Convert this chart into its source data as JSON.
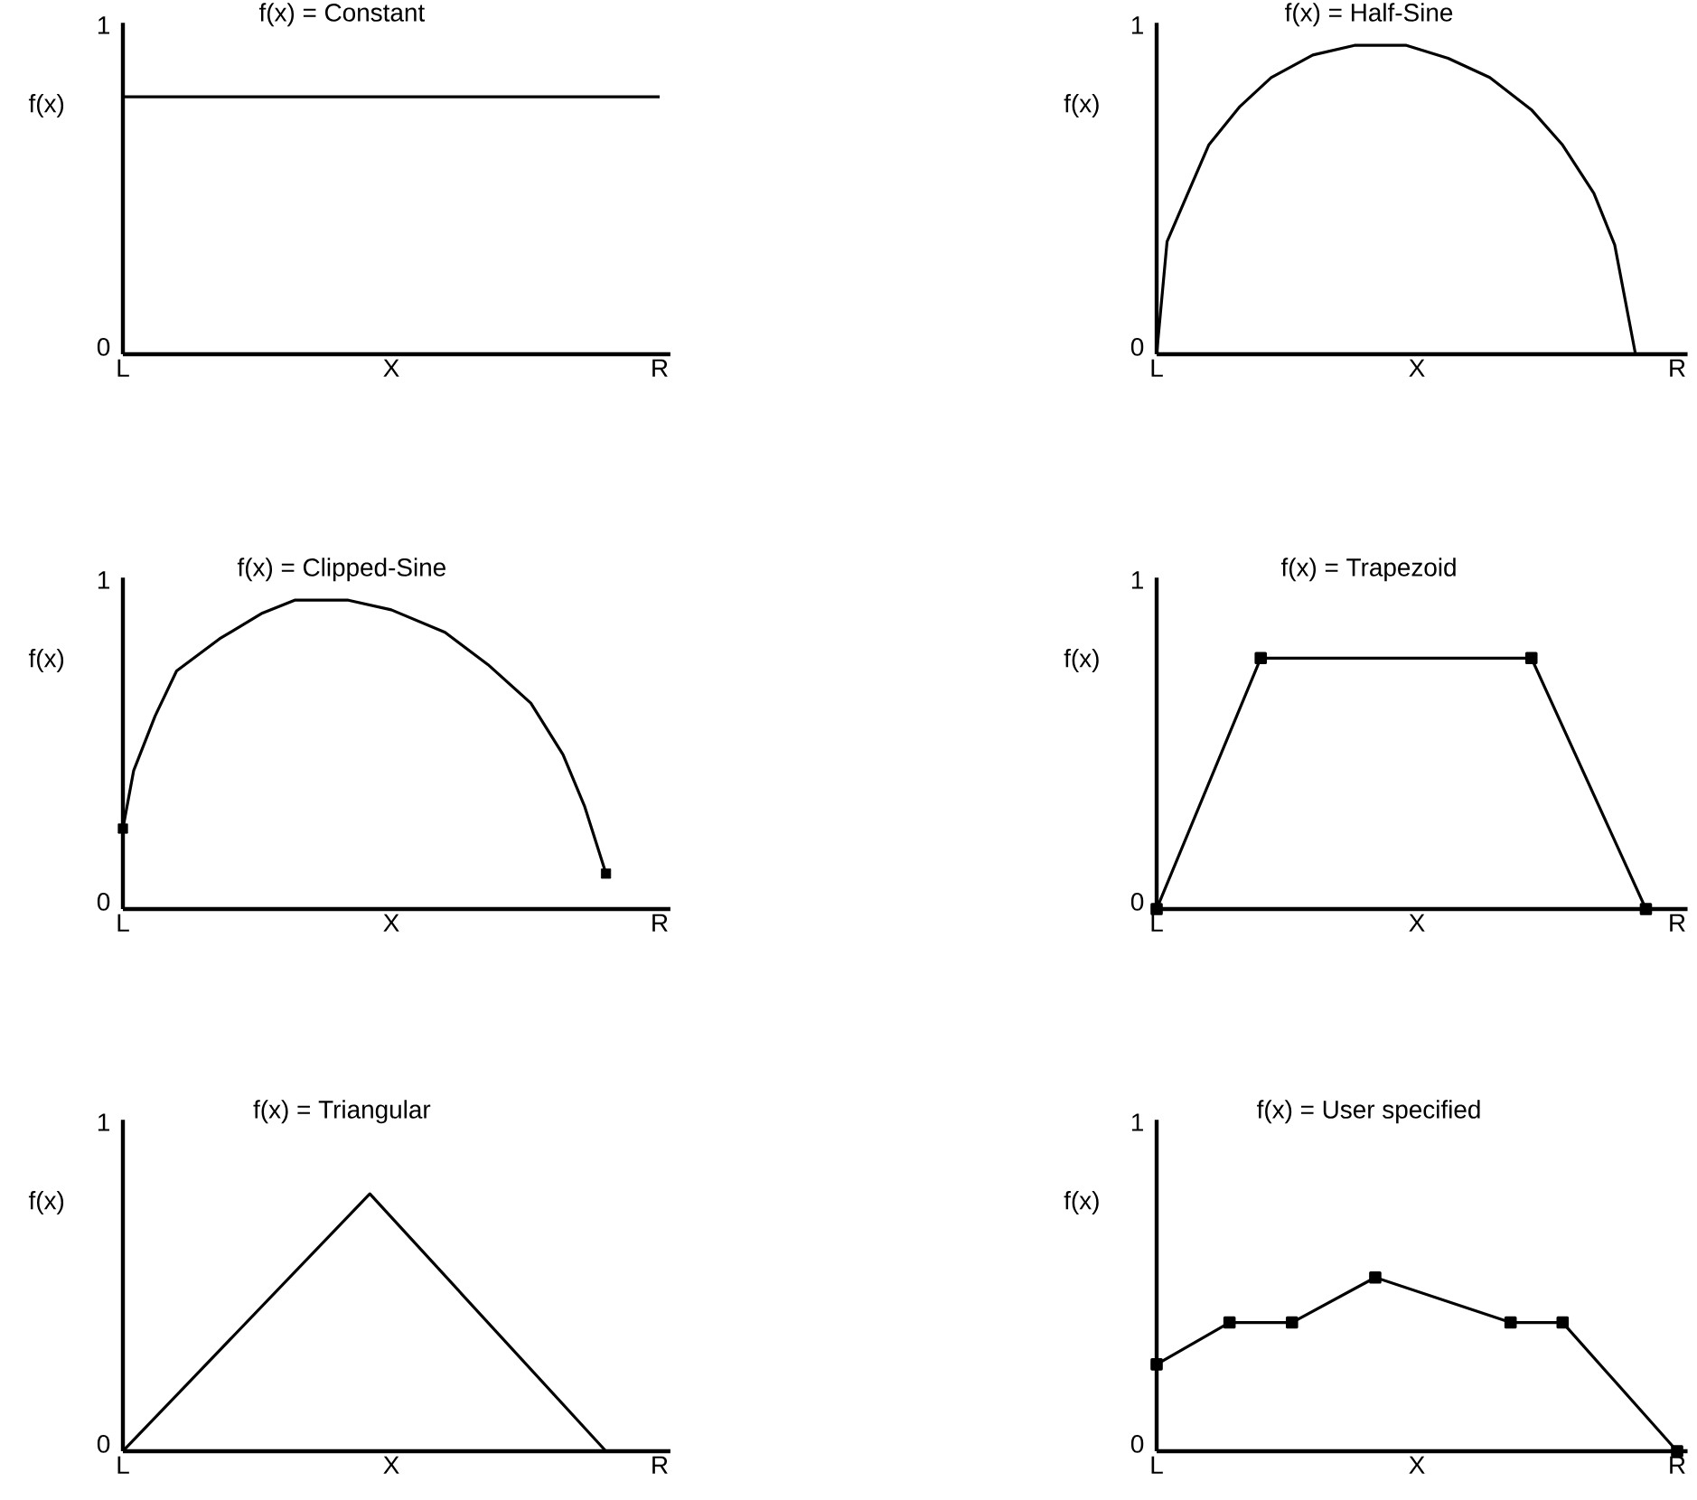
{
  "chart_data": [
    {
      "type": "line",
      "title": "f(x) = Constant",
      "ylabel": "f(x)",
      "ylim": [
        0,
        1.03
      ],
      "yticks": [
        0,
        1
      ],
      "categories": [
        "L",
        null,
        null,
        null,
        null,
        null,
        null,
        null,
        null,
        null,
        null,
        null,
        null,
        null,
        null,
        null,
        null,
        null,
        null,
        null,
        null,
        null,
        null,
        null,
        null,
        "X",
        null,
        null,
        null,
        null,
        null,
        null,
        null,
        null,
        null,
        null,
        null,
        null,
        null,
        null,
        null,
        null,
        null,
        null,
        null,
        null,
        null,
        null,
        null,
        null,
        "R"
      ],
      "series": [
        {
          "color": "#000000",
          "values": [
            0.8,
            null,
            null,
            null,
            null,
            null,
            null,
            null,
            null,
            null,
            null,
            null,
            null,
            null,
            null,
            null,
            null,
            null,
            null,
            null,
            null,
            null,
            null,
            null,
            null,
            null,
            null,
            null,
            null,
            null,
            null,
            null,
            null,
            null,
            null,
            null,
            null,
            null,
            null,
            null,
            null,
            null,
            null,
            null,
            null,
            null,
            null,
            null,
            null,
            null,
            0.8
          ]
        }
      ]
    },
    {
      "type": "line",
      "title": "f(x) = Half-Sine",
      "ylabel": "f(x)",
      "ylim": [
        0,
        1.03
      ],
      "yticks": [
        0,
        1
      ],
      "categories": [
        "L",
        null,
        null,
        null,
        null,
        null,
        null,
        null,
        null,
        null,
        null,
        null,
        null,
        null,
        null,
        null,
        null,
        null,
        null,
        null,
        null,
        null,
        null,
        null,
        null,
        "X",
        null,
        null,
        null,
        null,
        null,
        null,
        null,
        null,
        null,
        null,
        null,
        null,
        null,
        null,
        null,
        null,
        null,
        null,
        null,
        null,
        null,
        null,
        null,
        null,
        "R"
      ],
      "series": [
        {
          "color": "#000000",
          "values": [
            0,
            0.35,
            null,
            0.5,
            null,
            0.65,
            null,
            null,
            0.77,
            null,
            null,
            0.86,
            null,
            null,
            null,
            0.93,
            null,
            null,
            null,
            0.96,
            null,
            null,
            null,
            null,
            0.96,
            null,
            null,
            null,
            0.92,
            null,
            null,
            null,
            0.86,
            null,
            null,
            null,
            0.76,
            null,
            null,
            0.65,
            null,
            null,
            0.5,
            null,
            0.34,
            null,
            0,
            null,
            null,
            null,
            null
          ]
        }
      ]
    },
    {
      "type": "line",
      "title": "f(x) = Clipped-Sine",
      "ylabel": "f(x)",
      "ylim": [
        0,
        1.03
      ],
      "yticks": [
        0,
        1
      ],
      "categories": [
        "L",
        null,
        null,
        null,
        null,
        null,
        null,
        null,
        null,
        null,
        null,
        null,
        null,
        null,
        null,
        null,
        null,
        null,
        null,
        null,
        null,
        null,
        null,
        null,
        null,
        "X",
        null,
        null,
        null,
        null,
        null,
        null,
        null,
        null,
        null,
        null,
        null,
        null,
        null,
        null,
        null,
        null,
        null,
        null,
        null,
        null,
        null,
        null,
        null,
        null,
        "R"
      ],
      "series": [
        {
          "color": "#000000",
          "values": [
            0.25,
            0.43,
            null,
            0.6,
            null,
            0.74,
            null,
            null,
            null,
            0.84,
            null,
            null,
            null,
            0.92,
            null,
            null,
            0.96,
            null,
            null,
            null,
            null,
            0.96,
            null,
            null,
            null,
            0.93,
            null,
            null,
            null,
            null,
            0.86,
            null,
            null,
            null,
            0.76,
            null,
            null,
            null,
            0.64,
            null,
            null,
            0.48,
            null,
            0.32,
            null,
            0.11,
            null,
            null,
            null,
            null,
            null
          ]
        },
        {
          "type": "scatter",
          "marker": "square",
          "color": "#000000",
          "values": [
            0.25,
            null,
            null,
            null,
            null,
            null,
            null,
            null,
            null,
            null,
            null,
            null,
            null,
            null,
            null,
            null,
            null,
            null,
            null,
            null,
            null,
            null,
            null,
            null,
            null,
            null,
            null,
            null,
            null,
            null,
            null,
            null,
            null,
            null,
            null,
            null,
            null,
            null,
            null,
            null,
            null,
            null,
            null,
            null,
            null,
            0.11,
            null,
            null,
            null,
            null,
            null
          ]
        }
      ]
    },
    {
      "type": "line",
      "title": "f(x) = Trapezoid",
      "ylabel": "f(x)",
      "ylim": [
        0,
        1.03
      ],
      "yticks": [
        0,
        1
      ],
      "marker": "square",
      "categories": [
        "L",
        null,
        null,
        null,
        null,
        null,
        null,
        null,
        null,
        null,
        null,
        null,
        null,
        null,
        null,
        null,
        null,
        null,
        null,
        null,
        null,
        null,
        null,
        null,
        null,
        "X",
        null,
        null,
        null,
        null,
        null,
        null,
        null,
        null,
        null,
        null,
        null,
        null,
        null,
        null,
        null,
        null,
        null,
        null,
        null,
        null,
        null,
        null,
        null,
        null,
        "R"
      ],
      "series": [
        {
          "color": "#000000",
          "values": [
            0,
            null,
            null,
            null,
            null,
            null,
            null,
            null,
            null,
            null,
            0.78,
            null,
            null,
            null,
            null,
            null,
            null,
            null,
            null,
            null,
            null,
            null,
            null,
            null,
            null,
            null,
            null,
            null,
            null,
            null,
            null,
            null,
            null,
            null,
            null,
            null,
            0.78,
            null,
            null,
            null,
            null,
            null,
            null,
            null,
            null,
            null,
            null,
            0,
            null,
            null,
            null
          ]
        }
      ]
    },
    {
      "type": "line",
      "title": "f(x) = Triangular",
      "ylabel": "f(x)",
      "ylim": [
        0,
        1.03
      ],
      "yticks": [
        0,
        1
      ],
      "categories": [
        "L",
        null,
        null,
        null,
        null,
        null,
        null,
        null,
        null,
        null,
        null,
        null,
        null,
        null,
        null,
        null,
        null,
        null,
        null,
        null,
        null,
        null,
        null,
        null,
        null,
        "X",
        null,
        null,
        null,
        null,
        null,
        null,
        null,
        null,
        null,
        null,
        null,
        null,
        null,
        null,
        null,
        null,
        null,
        null,
        null,
        null,
        null,
        null,
        null,
        null,
        "R"
      ],
      "series": [
        {
          "color": "#000000",
          "values": [
            0,
            null,
            null,
            null,
            null,
            null,
            null,
            null,
            null,
            null,
            null,
            null,
            null,
            null,
            null,
            null,
            null,
            null,
            null,
            null,
            null,
            null,
            null,
            0.8,
            null,
            null,
            null,
            null,
            null,
            null,
            null,
            null,
            null,
            null,
            null,
            null,
            null,
            null,
            null,
            null,
            null,
            null,
            null,
            null,
            null,
            0,
            null,
            null,
            null,
            null,
            null
          ]
        }
      ]
    },
    {
      "type": "line",
      "title": "f(x) = User specified",
      "ylabel": "f(x)",
      "ylim": [
        0,
        1.03
      ],
      "yticks": [
        0,
        1
      ],
      "marker": "square",
      "categories": [
        "L",
        null,
        null,
        null,
        null,
        null,
        null,
        null,
        null,
        null,
        null,
        null,
        null,
        null,
        null,
        null,
        null,
        null,
        null,
        null,
        null,
        null,
        null,
        null,
        null,
        "X",
        null,
        null,
        null,
        null,
        null,
        null,
        null,
        null,
        null,
        null,
        null,
        null,
        null,
        null,
        null,
        null,
        null,
        null,
        null,
        null,
        null,
        null,
        null,
        null,
        "R"
      ],
      "series": [
        {
          "color": "#000000",
          "values": [
            0.27,
            null,
            null,
            null,
            null,
            null,
            null,
            0.4,
            null,
            null,
            null,
            null,
            null,
            0.4,
            null,
            null,
            null,
            null,
            null,
            null,
            null,
            0.54,
            null,
            null,
            null,
            null,
            null,
            null,
            null,
            null,
            null,
            null,
            null,
            null,
            0.4,
            null,
            null,
            null,
            null,
            0.4,
            null,
            null,
            null,
            null,
            null,
            null,
            null,
            null,
            null,
            null,
            0
          ]
        }
      ]
    }
  ]
}
